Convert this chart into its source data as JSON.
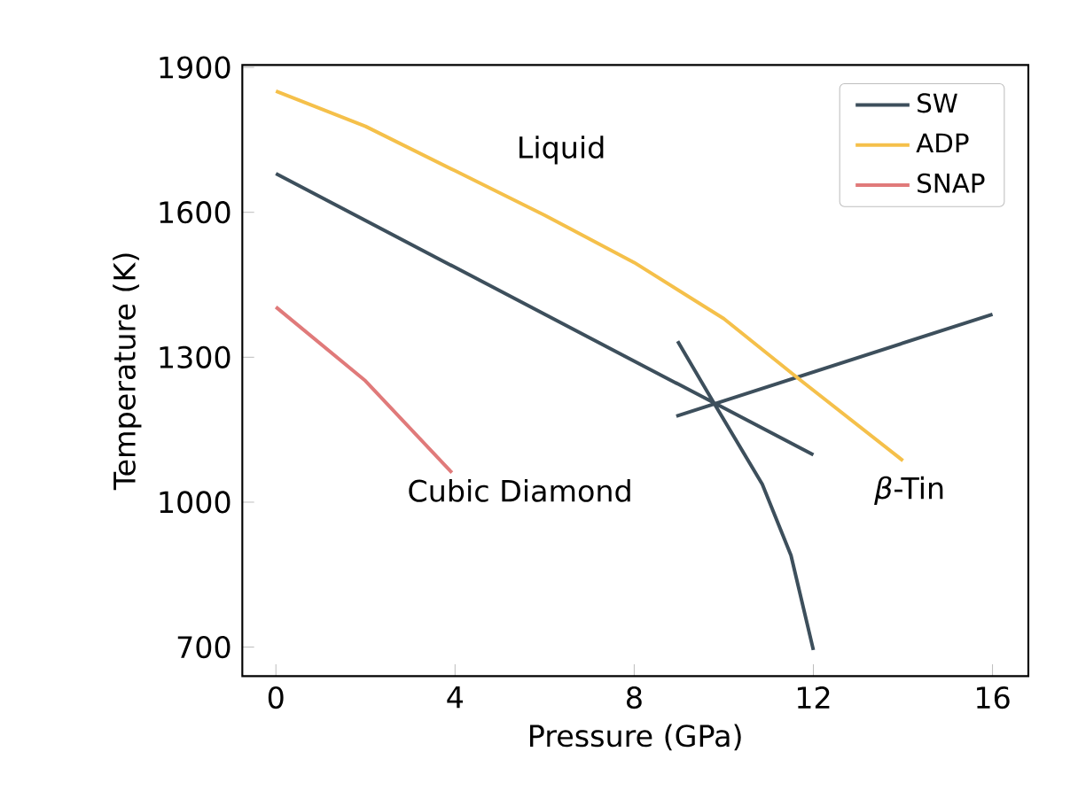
{
  "chart_data": {
    "type": "line",
    "xlabel": "Pressure (GPa)",
    "ylabel": "Temperature (K)",
    "xlim": [
      -0.75,
      16.8
    ],
    "ylim": [
      640,
      1905
    ],
    "xticks": [
      0,
      4,
      8,
      12,
      16
    ],
    "yticks": [
      700,
      1000,
      1300,
      1600,
      1900
    ],
    "legend": "top right",
    "grid": false,
    "marker": "none",
    "line_style": "solid",
    "series": [
      {
        "name": "SW",
        "color": "#3d4f5c",
        "x": [
          0,
          12,
          null,
          8.94,
          16,
          null,
          8.97,
          9.8,
          10.86,
          11.5,
          12
        ],
        "values": [
          1680,
          1098,
          null,
          1178,
          1389,
          null,
          1333,
          1202,
          1037,
          890,
          694
        ]
      },
      {
        "name": "ADP",
        "color": "#f5c04a",
        "x": [
          0,
          2,
          4,
          6,
          8,
          10,
          11.65,
          14
        ],
        "values": [
          1851,
          1778,
          1686,
          1594,
          1496,
          1380,
          1257,
          1086
        ]
      },
      {
        "name": "SNAP",
        "color": "#e07a7a",
        "x": [
          0,
          2,
          3.93
        ],
        "values": [
          1404,
          1251,
          1061
        ]
      }
    ],
    "annotations": [
      "Liquid",
      "Cubic Diamond",
      "*β*-Tin"
    ]
  }
}
